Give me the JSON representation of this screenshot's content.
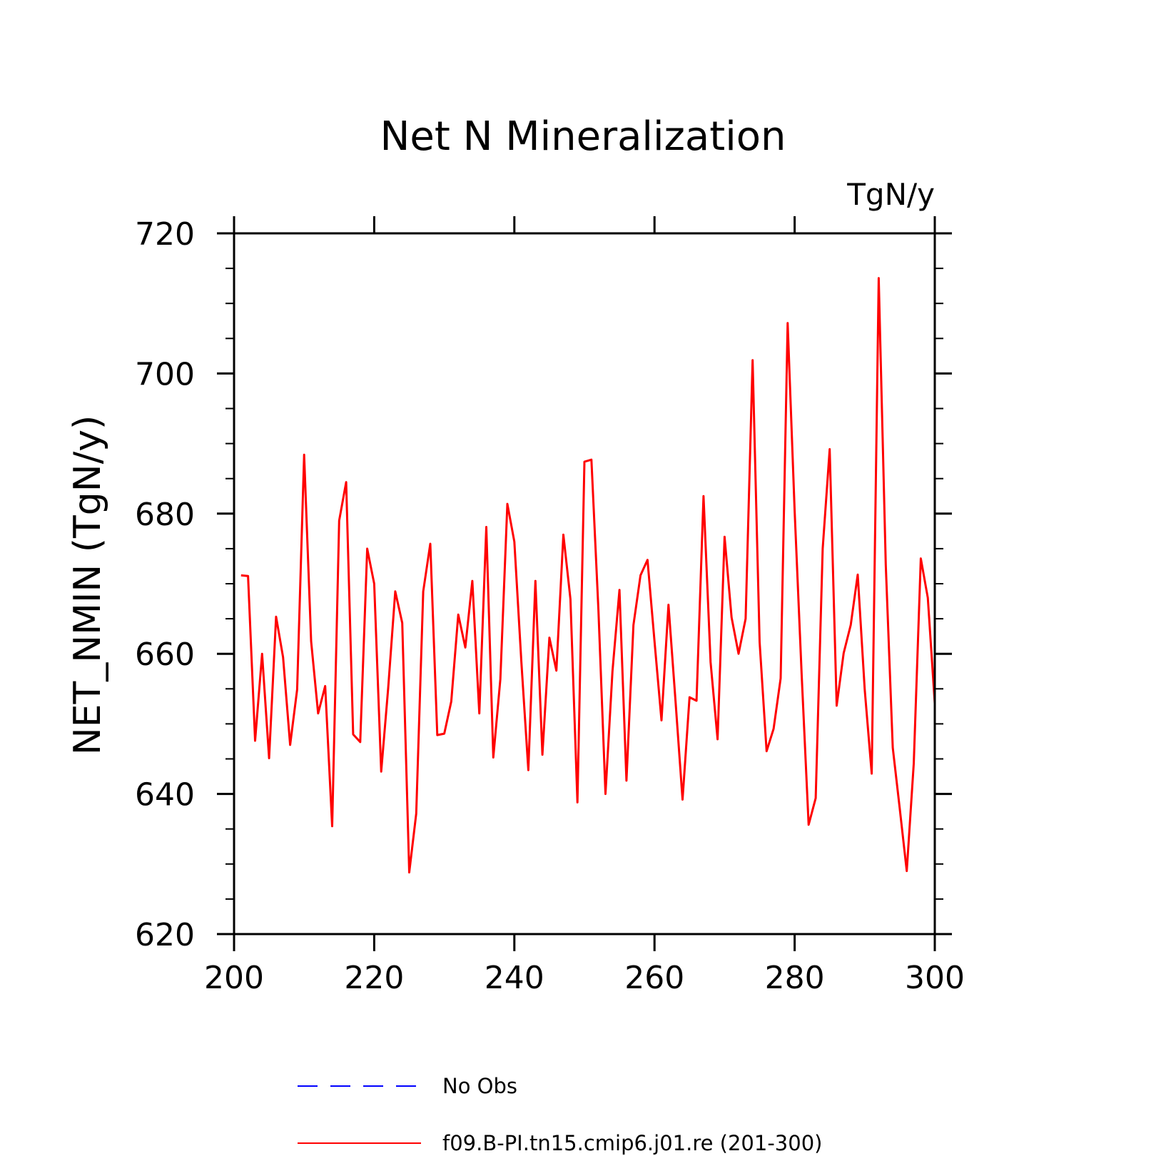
{
  "chart_data": {
    "type": "line",
    "title": "Net N Mineralization",
    "units_label": "TgN/y",
    "ylabel": "NET_NMIN   (TgN/y)",
    "xlabel": "",
    "xlim": [
      200,
      300
    ],
    "ylim": [
      620,
      720
    ],
    "x_ticks": [
      "200",
      "220",
      "240",
      "260",
      "280",
      "300"
    ],
    "y_ticks": [
      "620",
      "640",
      "660",
      "680",
      "700",
      "720"
    ],
    "grid": false,
    "legend_position": "bottom",
    "series": [
      {
        "name": "No Obs",
        "color": "#0000ff",
        "style": "dashed",
        "x": [],
        "y": []
      },
      {
        "name": "f09.B-PI.tn15.cmip6.j01.re (201-300)",
        "color": "#ff0000",
        "style": "solid",
        "x": [
          201,
          202,
          203,
          204,
          205,
          206,
          207,
          208,
          209,
          210,
          211,
          212,
          213,
          214,
          215,
          216,
          217,
          218,
          219,
          220,
          221,
          222,
          223,
          224,
          225,
          226,
          227,
          228,
          229,
          230,
          231,
          232,
          233,
          234,
          235,
          236,
          237,
          238,
          239,
          240,
          241,
          242,
          243,
          244,
          245,
          246,
          247,
          248,
          249,
          250,
          251,
          252,
          253,
          254,
          255,
          256,
          257,
          258,
          259,
          260,
          261,
          262,
          263,
          264,
          265,
          266,
          267,
          268,
          269,
          270,
          271,
          272,
          273,
          274,
          275,
          276,
          277,
          278,
          279,
          280,
          281,
          282,
          283,
          284,
          285,
          286,
          287,
          288,
          289,
          290,
          291,
          292,
          293,
          294,
          295,
          296,
          297,
          298,
          299,
          300
        ],
        "y": [
          671.2,
          671.1,
          647.6,
          660,
          645.1,
          665.3,
          659.5,
          647,
          654.9,
          688.4,
          661.8,
          651.5,
          655.4,
          635.4,
          679,
          684.5,
          648.5,
          647.4,
          675,
          670,
          643.2,
          655.1,
          668.9,
          664.4,
          628.8,
          637.2,
          668.9,
          675.7,
          648.4,
          648.6,
          653.2,
          665.6,
          660.9,
          670.4,
          651.5,
          678.1,
          645.2,
          656.4,
          681.4,
          676,
          658.9,
          643.4,
          670.4,
          645.6,
          662.3,
          657.6,
          677,
          667.8,
          638.8,
          687.4,
          687.7,
          666.3,
          640,
          657.5,
          669.1,
          641.9,
          664.1,
          671.2,
          673.4,
          661.8,
          650.5,
          667,
          653.2,
          639.2,
          653.8,
          653.3,
          682.5,
          658.8,
          647.8,
          676.7,
          665.2,
          660,
          665,
          701.9,
          661.7,
          646.1,
          649.3,
          656.5,
          707.2,
          680.4,
          657.1,
          635.6,
          639.4,
          675,
          689.2,
          652.6,
          660.1,
          664.1,
          671.3,
          654.9,
          642.9,
          713.6,
          672.7,
          646.6,
          637.9,
          629,
          644.3,
          673.6,
          668,
          652.9
        ]
      }
    ]
  }
}
